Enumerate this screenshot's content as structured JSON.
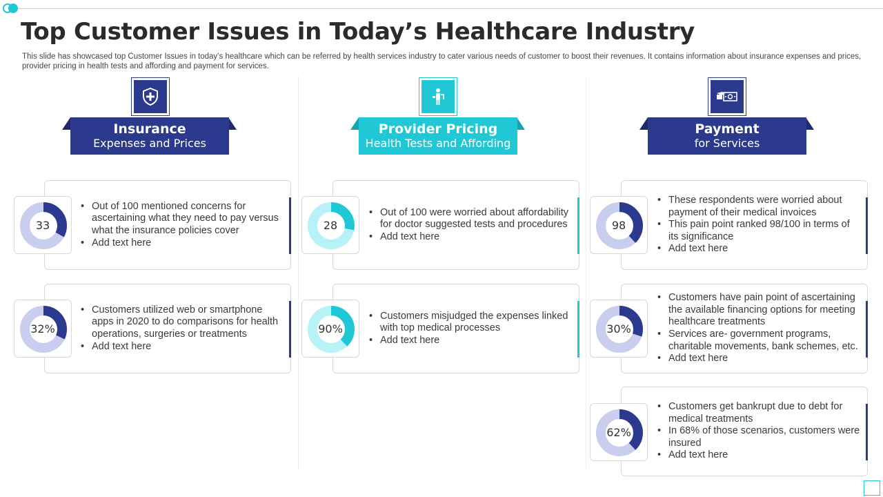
{
  "title": "Top Customer Issues in Today’s Healthcare Industry",
  "subtitle": "This slide has showcased top Customer Issues in today’s healthcare which can be referred by health services industry to cater various needs of customer to boost their revenues. It contains information about insurance expenses and prices, provider pricing in health tests and affording and payment for services.",
  "colors": {
    "navy": "#2b3a8c",
    "teal": "#1fc8d4",
    "navy_light": "#c9cdee",
    "teal_light": "#b6f2f6"
  },
  "columns": [
    {
      "icon": "shield-plus-icon",
      "banner_title": "Insurance",
      "banner_subtitle": "Expenses and Prices",
      "theme": "navy",
      "cards": [
        {
          "value": 33,
          "label": "33",
          "bullets": [
            "Out of 100 mentioned concerns for ascertaining what they need to pay versus what the insurance policies cover",
            "Add text here"
          ]
        },
        {
          "value": 32,
          "label": "32%",
          "bullets": [
            "Customers utilized web or smartphone apps in 2020 to do comparisons for health operations, surgeries or treatments",
            "Add text here"
          ]
        }
      ]
    },
    {
      "icon": "doctor-patient-icon",
      "banner_title": "Provider Pricing",
      "banner_subtitle": "Health Tests and Affording",
      "theme": "teal",
      "cards": [
        {
          "value": 28,
          "label": "28",
          "bullets": [
            "Out of 100 were worried about affordability for doctor suggested tests and procedures",
            "Add text here"
          ]
        },
        {
          "value": 90,
          "label": "90%",
          "bullets": [
            "Customers misjudged the expenses linked with top medical processes",
            "Add text here"
          ]
        }
      ]
    },
    {
      "icon": "hand-money-icon",
      "banner_title": "Payment",
      "banner_subtitle": "for Services",
      "theme": "navy",
      "cards": [
        {
          "value": 98,
          "label": "98",
          "bullets": [
            "These respondents were worried about payment of their medical invoices",
            "This pain point ranked 98/100 in terms of its significance",
            "Add text here"
          ]
        },
        {
          "value": 30,
          "label": "30%",
          "bullets": [
            "Customers have pain point of ascertaining the available financing options for meeting healthcare treatments",
            "Services are- government programs, charitable movements, bank schemes, etc.",
            "Add text here"
          ]
        },
        {
          "value": 62,
          "label": "62%",
          "bullets": [
            "Customers get bankrupt due to debt for medical treatments",
            "In 68% of those scenarios, customers were insured",
            "Add text here"
          ]
        }
      ]
    }
  ]
}
